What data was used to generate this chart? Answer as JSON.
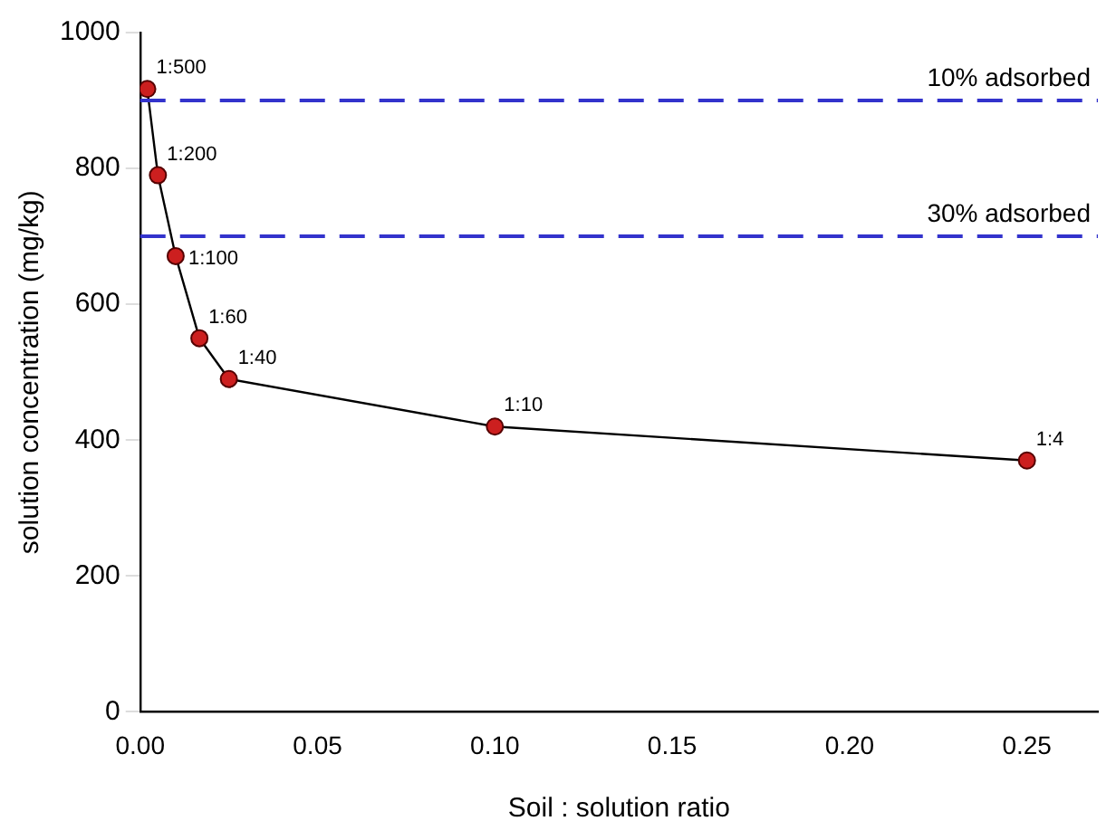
{
  "chart_data": {
    "type": "line",
    "xlabel": "Soil : solution ratio",
    "ylabel": "solution concentration (mg/kg)",
    "x": [
      0.002,
      0.005,
      0.01,
      0.0167,
      0.025,
      0.1,
      0.25
    ],
    "series": [
      {
        "color": "#cc1f1f",
        "values": [
          917,
          790,
          671,
          550,
          490,
          420,
          370
        ]
      }
    ],
    "marker": "circle",
    "line_style": "solid",
    "grid": false,
    "legend": false,
    "xlim": [
      0,
      0.27
    ],
    "xticks": [
      {
        "value": 0,
        "label": "0.00"
      },
      {
        "value": 0.05,
        "label": "0.05"
      },
      {
        "value": 0.1,
        "label": "0.10"
      },
      {
        "value": 0.15,
        "label": "0.15"
      },
      {
        "value": 0.2,
        "label": "0.20"
      },
      {
        "value": 0.25,
        "label": "0.25"
      }
    ],
    "ylim": [
      0,
      1000
    ],
    "yticks": [
      0,
      200,
      400,
      600,
      800,
      1000
    ],
    "ref_lines": [
      {
        "axis": "y",
        "value": 900,
        "label": "10% adsorbed",
        "color": "#3333cc",
        "line_style": "dashed"
      },
      {
        "axis": "y",
        "value": 700,
        "label": "30% adsorbed",
        "color": "#3333cc",
        "line_style": "dashed"
      }
    ],
    "annotations": [
      {
        "text": "1:500",
        "x": 0.002,
        "y": 917
      },
      {
        "text": "1:200",
        "x": 0.005,
        "y": 790
      },
      {
        "text": "1:100",
        "x": 0.01,
        "y": 671
      },
      {
        "text": "1:60",
        "x": 0.0167,
        "y": 550
      },
      {
        "text": "1:40",
        "x": 0.025,
        "y": 490
      },
      {
        "text": "1:10",
        "x": 0.1,
        "y": 420
      },
      {
        "text": "1:4",
        "x": 0.25,
        "y": 370
      }
    ]
  }
}
